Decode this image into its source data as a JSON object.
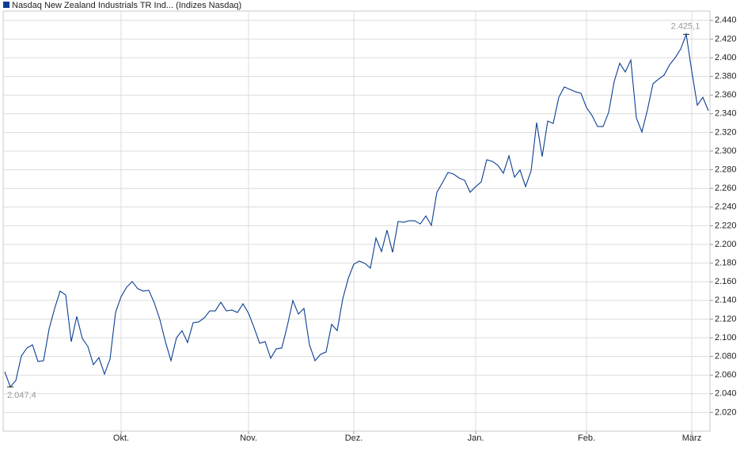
{
  "chart_data": {
    "type": "line",
    "series": [
      {
        "name": "Nasdaq New Zealand Industrials TR Ind... (Indizes Nasdaq)",
        "color": "#0b3f94",
        "values": [
          2063.6,
          2047.4,
          2054.2,
          2080.5,
          2089.0,
          2092.4,
          2074.6,
          2075.4,
          2109.3,
          2131.4,
          2150.0,
          2145.8,
          2095.8,
          2122.9,
          2099.2,
          2090.7,
          2071.2,
          2078.8,
          2061.0,
          2077.1,
          2127.1,
          2144.1,
          2154.2,
          2160.2,
          2152.6,
          2150.0,
          2150.9,
          2137.3,
          2119.5,
          2095.8,
          2075.4,
          2100.0,
          2107.6,
          2094.9,
          2116.1,
          2117.0,
          2121.2,
          2128.8,
          2128.8,
          2138.1,
          2128.8,
          2129.7,
          2127.1,
          2136.4,
          2126.3,
          2111.0,
          2094.1,
          2095.8,
          2078.0,
          2088.1,
          2089.0,
          2112.7,
          2139.8,
          2125.4,
          2131.4,
          2092.4,
          2075.4,
          2082.2,
          2084.8,
          2114.4,
          2107.6,
          2141.5,
          2163.6,
          2178.8,
          2182.2,
          2179.7,
          2174.6,
          2206.8,
          2192.4,
          2215.3,
          2191.5,
          2224.6,
          2223.7,
          2225.4,
          2225.4,
          2222.0,
          2230.5,
          2220.4,
          2255.9,
          2266.1,
          2277.1,
          2275.4,
          2271.2,
          2268.7,
          2255.9,
          2261.9,
          2267.0,
          2290.7,
          2289.0,
          2284.8,
          2276.3,
          2294.9,
          2272.0,
          2279.7,
          2261.9,
          2278.8,
          2330.5,
          2294.1,
          2332.2,
          2329.7,
          2357.6,
          2368.7,
          2366.1,
          2363.6,
          2361.9,
          2346.6,
          2338.1,
          2326.3,
          2326.3,
          2341.5,
          2374.6,
          2394.1,
          2384.8,
          2397.5,
          2335.6,
          2320.4,
          2344.1,
          2372.1,
          2377.1,
          2381.4,
          2392.4,
          2400.0,
          2409.3,
          2425.1,
          2385.6,
          2349.2,
          2357.6,
          2343.2
        ]
      }
    ],
    "categories": [
      null,
      null,
      null,
      null,
      null,
      null,
      null,
      null,
      null,
      null,
      null,
      null,
      null,
      null,
      null,
      null,
      null,
      null,
      null,
      null,
      null,
      "Okt.",
      null,
      null,
      null,
      null,
      null,
      null,
      null,
      null,
      null,
      null,
      null,
      null,
      null,
      null,
      null,
      null,
      null,
      null,
      null,
      null,
      null,
      null,
      "Nov.",
      null,
      null,
      null,
      null,
      null,
      null,
      null,
      null,
      null,
      null,
      null,
      null,
      null,
      null,
      null,
      null,
      null,
      null,
      "Dez.",
      null,
      null,
      null,
      null,
      null,
      null,
      null,
      null,
      null,
      null,
      null,
      null,
      null,
      null,
      null,
      null,
      null,
      null,
      null,
      null,
      null,
      "Jan.",
      null,
      null,
      null,
      null,
      null,
      null,
      null,
      null,
      null,
      null,
      null,
      null,
      null,
      null,
      null,
      null,
      null,
      null,
      null,
      "Feb.",
      null,
      null,
      null,
      null,
      null,
      null,
      null,
      null,
      null,
      null,
      null,
      null,
      null,
      null,
      null,
      null,
      null,
      null,
      "März",
      null,
      null,
      null
    ],
    "annotations": {
      "max": "2.425,1",
      "min": "2.047,4"
    },
    "ylim": [
      2000,
      2450
    ],
    "yticks": [
      {
        "value": 2020,
        "label": "2.020"
      },
      {
        "value": 2040,
        "label": "2.040"
      },
      {
        "value": 2060,
        "label": "2.060"
      },
      {
        "value": 2080,
        "label": "2.080"
      },
      {
        "value": 2100,
        "label": "2.100"
      },
      {
        "value": 2120,
        "label": "2.120"
      },
      {
        "value": 2140,
        "label": "2.140"
      },
      {
        "value": 2160,
        "label": "2.160"
      },
      {
        "value": 2180,
        "label": "2.180"
      },
      {
        "value": 2200,
        "label": "2.200"
      },
      {
        "value": 2220,
        "label": "2.220"
      },
      {
        "value": 2240,
        "label": "2.240"
      },
      {
        "value": 2260,
        "label": "2.260"
      },
      {
        "value": 2280,
        "label": "2.280"
      },
      {
        "value": 2300,
        "label": "2.300"
      },
      {
        "value": 2320,
        "label": "2.320"
      },
      {
        "value": 2340,
        "label": "2.340"
      },
      {
        "value": 2360,
        "label": "2.360"
      },
      {
        "value": 2380,
        "label": "2.380"
      },
      {
        "value": 2400,
        "label": "2.400"
      },
      {
        "value": 2420,
        "label": "2.420"
      },
      {
        "value": 2440,
        "label": "2.440"
      }
    ],
    "grid": true
  }
}
